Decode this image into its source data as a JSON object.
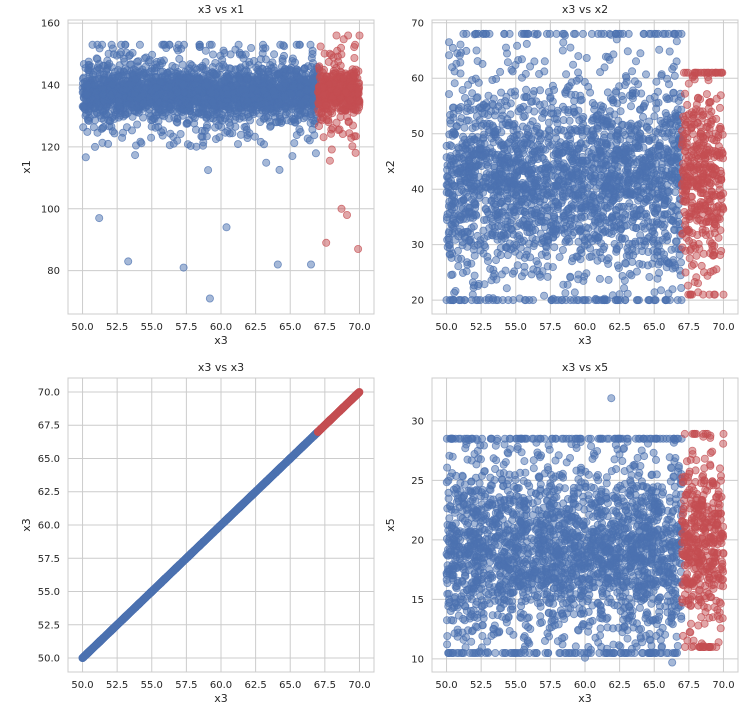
{
  "colors": {
    "blue": "#4c72b0",
    "red": "#c44e52",
    "grid": "#cccccc",
    "text": "#262626"
  },
  "chart_data": [
    {
      "type": "scatter",
      "title": "x3 vs x1",
      "xlabel": "x3",
      "ylabel": "x1",
      "xlim": [
        48.95,
        71.05
      ],
      "ylim": [
        66,
        161
      ],
      "xticks": [
        "50.0",
        "52.5",
        "55.0",
        "57.5",
        "60.0",
        "62.5",
        "65.0",
        "67.5",
        "70.0"
      ],
      "yticks": [
        "80",
        "100",
        "120",
        "140",
        "160"
      ],
      "grid": true,
      "series": [
        {
          "color": "blue",
          "x_range": [
            50.0,
            67.0
          ],
          "y_center": 137.5,
          "y_spread": 3.5,
          "tail": [
            97,
            153
          ],
          "count": 2400,
          "outliers": [
            [
              59.2,
              71
            ],
            [
              57.3,
              81
            ],
            [
              53.3,
              83
            ],
            [
              66.5,
              82
            ],
            [
              64.1,
              82
            ],
            [
              51.2,
              97
            ],
            [
              60.4,
              94
            ]
          ]
        },
        {
          "color": "red",
          "x_range": [
            67.0,
            70.0
          ],
          "y_center": 137.5,
          "y_spread": 3.5,
          "tail": [
            97,
            156
          ],
          "count": 420,
          "outliers": [
            [
              67.6,
              89
            ],
            [
              69.9,
              87
            ],
            [
              68.7,
              100
            ],
            [
              69.1,
              98
            ],
            [
              70.0,
              156
            ]
          ]
        }
      ]
    },
    {
      "type": "scatter",
      "title": "x3 vs x2",
      "xlabel": "x3",
      "ylabel": "x2",
      "xlim": [
        48.95,
        71.05
      ],
      "ylim": [
        17.5,
        70.5
      ],
      "xticks": [
        "50.0",
        "52.5",
        "55.0",
        "57.5",
        "60.0",
        "62.5",
        "65.0",
        "67.5",
        "70.0"
      ],
      "yticks": [
        "20",
        "30",
        "40",
        "50",
        "60",
        "70"
      ],
      "grid": true,
      "series": [
        {
          "color": "blue",
          "x_range": [
            50.0,
            67.0
          ],
          "y_center": 41.5,
          "y_spread": 7.5,
          "tail": [
            20,
            68
          ],
          "count": 2400,
          "outliers": [
            [
              52.3,
              68
            ],
            [
              62.3,
              67
            ],
            [
              50.4,
              62
            ],
            [
              58.4,
              65
            ],
            [
              62.9,
              20
            ],
            [
              51.9,
              21
            ]
          ]
        },
        {
          "color": "red",
          "x_range": [
            67.0,
            70.0
          ],
          "y_center": 42.0,
          "y_spread": 7.5,
          "tail": [
            21,
            61
          ],
          "count": 420,
          "outliers": [
            [
              67.6,
              21
            ],
            [
              70.0,
              21
            ],
            [
              67.3,
              61
            ]
          ]
        }
      ]
    },
    {
      "type": "scatter",
      "title": "x3 vs x3",
      "xlabel": "x3",
      "ylabel": "x3",
      "xlim": [
        48.95,
        71.05
      ],
      "ylim": [
        48.95,
        71.05
      ],
      "xticks": [
        "50.0",
        "52.5",
        "55.0",
        "57.5",
        "60.0",
        "62.5",
        "65.0",
        "67.5",
        "70.0"
      ],
      "yticks": [
        "50.0",
        "52.5",
        "55.0",
        "57.5",
        "60.0",
        "62.5",
        "65.0",
        "67.5",
        "70.0"
      ],
      "grid": true,
      "series": [
        {
          "color": "blue",
          "x_range": [
            50.0,
            67.0
          ],
          "identity": true,
          "count": 2400
        },
        {
          "color": "red",
          "x_range": [
            67.0,
            70.0
          ],
          "identity": true,
          "count": 420
        }
      ]
    },
    {
      "type": "scatter",
      "title": "x3 vs x5",
      "xlabel": "x3",
      "ylabel": "x5",
      "xlim": [
        48.95,
        71.05
      ],
      "ylim": [
        8.9,
        33.6
      ],
      "xticks": [
        "50.0",
        "52.5",
        "55.0",
        "57.5",
        "60.0",
        "62.5",
        "65.0",
        "67.5",
        "70.0"
      ],
      "yticks": [
        "10",
        "15",
        "20",
        "25",
        "30"
      ],
      "grid": true,
      "series": [
        {
          "color": "blue",
          "x_range": [
            50.0,
            67.0
          ],
          "y_center": 19.3,
          "y_spread": 3.2,
          "tail": [
            10.5,
            28.5
          ],
          "count": 2400,
          "outliers": [
            [
              61.9,
              31.9
            ],
            [
              60.0,
              10.1
            ],
            [
              66.3,
              9.7
            ],
            [
              51.4,
              28.3
            ]
          ]
        },
        {
          "color": "red",
          "x_range": [
            67.0,
            70.0
          ],
          "y_center": 19.6,
          "y_spread": 3.2,
          "tail": [
            11,
            28.9
          ],
          "count": 420,
          "outliers": [
            [
              70.0,
              28.9
            ],
            [
              68.5,
              11.0
            ]
          ]
        }
      ]
    }
  ]
}
